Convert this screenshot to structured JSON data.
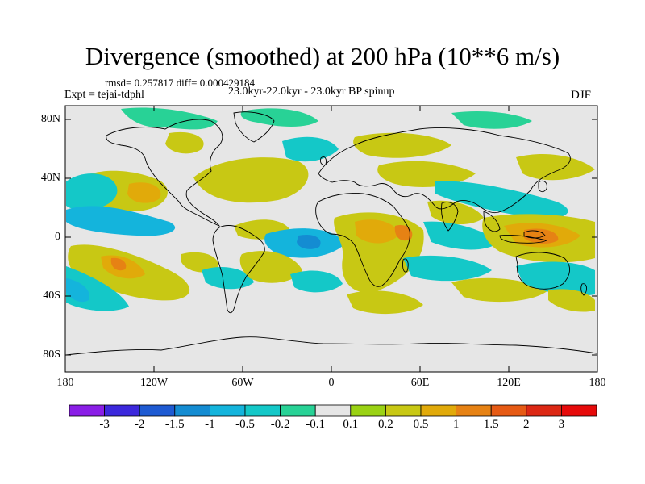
{
  "header": {
    "title": "Divergence (smoothed) at 200 hPa (10**6 m/s)",
    "stats": "rmsd= 0.257817 diff= 0.000429184",
    "experiment": "Expt = tejai-tdphl",
    "period": "23.0kyr-22.0kyr - 23.0kyr BP spinup",
    "season": "DJF"
  },
  "axes": {
    "lat_labels": [
      "80N",
      "40N",
      "0",
      "40S",
      "80S"
    ],
    "lon_labels": [
      "180",
      "120W",
      "60W",
      "0",
      "60E",
      "120E",
      "180"
    ]
  },
  "colorbar": {
    "labels": [
      "-3",
      "-2",
      "-1.5",
      "-1",
      "-0.5",
      "-0.2",
      "-0.1",
      "0.1",
      "0.2",
      "0.5",
      "1",
      "1.5",
      "2",
      "3"
    ],
    "colors": [
      "#8a1ee6",
      "#3c28dc",
      "#1e5ad2",
      "#148cd2",
      "#14b4dc",
      "#14c8c8",
      "#28d296",
      "#e6e6e6",
      "#9ad214",
      "#c8c814",
      "#e1aa0a",
      "#e68214",
      "#e65a14",
      "#dc2814",
      "#e60a0a"
    ]
  },
  "map": {
    "background": "#e6e6e6",
    "colors": {
      "green": "#28d296",
      "cyan": "#14c8c8",
      "lightblue": "#14b4dc",
      "blue": "#148cd2",
      "lime": "#9ad214",
      "olive": "#c8c814",
      "gold": "#e1aa0a",
      "orange": "#e68214",
      "red": "#e65a14"
    }
  }
}
